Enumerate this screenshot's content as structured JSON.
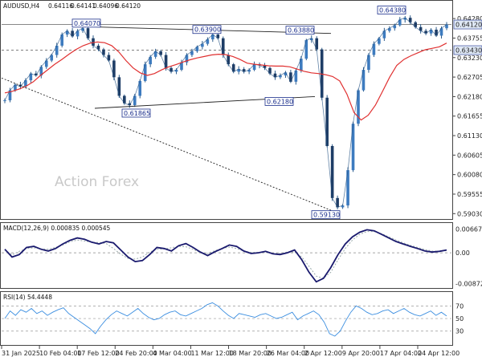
{
  "chart_data": [
    {
      "type": "candlestick",
      "symbol_header": "AUDUSD,H4",
      "ohlc": [
        "0.64116",
        "0.64141",
        "0.64096",
        "0.64120"
      ],
      "watermark": "Action Forex",
      "y_ticks": [
        0.6428,
        0.63755,
        0.6323,
        0.62705,
        0.6218,
        0.61655,
        0.6113,
        0.60605,
        0.6008,
        0.59555,
        0.5903
      ],
      "y_tick_labels": [
        "0.64280",
        "0.63755",
        "0.63230",
        "0.62705",
        "0.62180",
        "0.61655",
        "0.61130",
        "0.60605",
        "0.60080",
        "0.59555",
        "0.59030"
      ],
      "ylim": [
        0.5895,
        0.6465
      ],
      "x_labels": [
        "31 Jan 2025",
        "10 Feb 04:00",
        "17 Feb 12:00",
        "24 Feb 20:00",
        "4 Mar 04:00",
        "11 Mar 12:00",
        "18 Mar 20:00",
        "26 Mar 04:00",
        "2 Apr 12:00",
        "9 Apr 20:00",
        "17 Apr 04:00",
        "24 Apr 12:00"
      ],
      "current_price": "0.64120",
      "price_level_label": "0.63430",
      "price_level": 0.6343,
      "annotations": [
        "0.64070",
        "0.63900",
        "0.63880",
        "0.64380",
        "0.61865",
        "0.62180",
        "0.59130"
      ],
      "annotation_values": [
        0.6407,
        0.639,
        0.6388,
        0.6438,
        0.61865,
        0.6218,
        0.5913
      ],
      "close_series": [
        0.6208,
        0.6235,
        0.625,
        0.6245,
        0.6262,
        0.628,
        0.6275,
        0.6298,
        0.6315,
        0.633,
        0.6355,
        0.6385,
        0.6395,
        0.638,
        0.6395,
        0.6402,
        0.6375,
        0.6355,
        0.6345,
        0.633,
        0.6315,
        0.627,
        0.622,
        0.62,
        0.6195,
        0.622,
        0.626,
        0.6305,
        0.6325,
        0.634,
        0.633,
        0.6295,
        0.6285,
        0.629,
        0.631,
        0.633,
        0.634,
        0.6352,
        0.636,
        0.6372,
        0.6385,
        0.6375,
        0.633,
        0.6305,
        0.6285,
        0.6292,
        0.6285,
        0.629,
        0.6305,
        0.6302,
        0.6295,
        0.628,
        0.627,
        0.6275,
        0.6283,
        0.6258,
        0.6288,
        0.632,
        0.637,
        0.6375,
        0.6345,
        0.6215,
        0.6085,
        0.5945,
        0.592,
        0.5925,
        0.602,
        0.6145,
        0.6235,
        0.629,
        0.633,
        0.636,
        0.6375,
        0.6395,
        0.6402,
        0.641,
        0.6425,
        0.643,
        0.6418,
        0.6405,
        0.6395,
        0.6388,
        0.6398,
        0.6382,
        0.6402,
        0.6412
      ],
      "ma_series": [
        0.6228,
        0.6232,
        0.6238,
        0.6246,
        0.6258,
        0.6275,
        0.629,
        0.6305,
        0.6318,
        0.6332,
        0.6345,
        0.6355,
        0.6362,
        0.6365,
        0.6363,
        0.6355,
        0.6338,
        0.6315,
        0.6295,
        0.6282,
        0.6275,
        0.628,
        0.629,
        0.6298,
        0.6304,
        0.6311,
        0.6317,
        0.6322,
        0.6326,
        0.633,
        0.6332,
        0.6331,
        0.6326,
        0.6318,
        0.6308,
        0.6305,
        0.6303,
        0.6301,
        0.63,
        0.63,
        0.6298,
        0.6292,
        0.6286,
        0.6282,
        0.628,
        0.6277,
        0.6272,
        0.626,
        0.6225,
        0.6175,
        0.6155,
        0.6168,
        0.6195,
        0.6232,
        0.627,
        0.6302,
        0.6318,
        0.6328,
        0.6336,
        0.6344,
        0.6348,
        0.6352,
        0.6362
      ],
      "trendlines": [
        {
          "style": "solid",
          "points": [
            [
              0.6407,
              0.641
            ],
            [
              0.6388,
              0.6385
            ]
          ]
        },
        {
          "style": "solid",
          "points": [
            [
              0.61865,
              0.61865
            ],
            [
              0.6218,
              0.6218
            ]
          ]
        },
        {
          "style": "dashed",
          "points": [
            [
              0.6268,
              0.5912
            ]
          ]
        }
      ],
      "macd": {
        "header": "MACD(12,26,9) 0.000835 0.000545",
        "y_tick_labels": [
          "0.006675",
          "0.00",
          "-0.008724"
        ],
        "ylim": [
          -0.0095,
          0.0075
        ],
        "main": [
          0.001,
          -0.0012,
          -0.0005,
          0.0015,
          0.0018,
          0.001,
          0.0005,
          0.0012,
          0.0025,
          0.0035,
          0.0042,
          0.0038,
          0.003,
          0.0025,
          0.0032,
          0.0028,
          0.0008,
          -0.0012,
          -0.0025,
          -0.0022,
          -0.0005,
          0.0015,
          0.0012,
          0.0005,
          0.002,
          0.0026,
          0.0015,
          0.0002,
          -0.0008,
          0.0003,
          0.0012,
          0.0022,
          0.0018,
          0.0005,
          -0.0002,
          0.0,
          0.0004,
          -0.0003,
          -0.0005,
          0.0,
          0.0008,
          -0.002,
          -0.0055,
          -0.0082,
          -0.0072,
          -0.0042,
          -0.0005,
          0.0025,
          0.0045,
          0.0058,
          0.0065,
          0.0062,
          0.0052,
          0.0042,
          0.0032,
          0.0025,
          0.0018,
          0.0012,
          0.0005,
          0.0002,
          0.0004,
          0.0008
        ],
        "signal": [
          0.0008,
          -0.0006,
          0.0004,
          0.0012,
          0.0014,
          0.0011,
          0.001,
          0.0015,
          0.0022,
          0.0031,
          0.0036,
          0.0033,
          0.003,
          0.0029,
          0.0026,
          0.0012,
          -0.0004,
          -0.0016,
          -0.0018,
          -0.0012,
          0.0002,
          0.001,
          0.0011,
          0.0014,
          0.0018,
          0.0017,
          0.001,
          0.0,
          -0.0002,
          0.0006,
          0.0012,
          0.0016,
          0.0012,
          0.0005,
          0.0001,
          0.0001,
          0.0001,
          -0.0002,
          -0.0002,
          0.0002,
          0.0002,
          -0.0012,
          -0.0038,
          -0.0066,
          -0.0072,
          -0.0055,
          -0.002,
          0.0012,
          0.0036,
          0.0052,
          0.006,
          0.006,
          0.0054,
          0.0045,
          0.0036,
          0.0028,
          0.0021,
          0.0015,
          0.0009,
          0.0005,
          0.0004,
          0.0006
        ]
      },
      "rsi": {
        "header": "RSI(14) 54.4448",
        "y_tick_labels": [
          "70",
          "50",
          "30"
        ],
        "levels": [
          70,
          50,
          30
        ],
        "ylim": [
          8,
          87
        ],
        "values": [
          50,
          62,
          55,
          64,
          60,
          66,
          58,
          62,
          55,
          60,
          64,
          67,
          58,
          52,
          46,
          40,
          34,
          26,
          38,
          48,
          56,
          62,
          58,
          54,
          60,
          66,
          58,
          52,
          48,
          50,
          56,
          60,
          62,
          56,
          54,
          58,
          62,
          66,
          72,
          75,
          70,
          62,
          55,
          50,
          58,
          56,
          54,
          52,
          56,
          58,
          54,
          50,
          52,
          56,
          60,
          48,
          54,
          58,
          62,
          56,
          44,
          26,
          22,
          30,
          46,
          60,
          70,
          66,
          60,
          56,
          58,
          62,
          64,
          58,
          62,
          66,
          60,
          56,
          54,
          58,
          62,
          55,
          60,
          54
        ]
      }
    }
  ]
}
